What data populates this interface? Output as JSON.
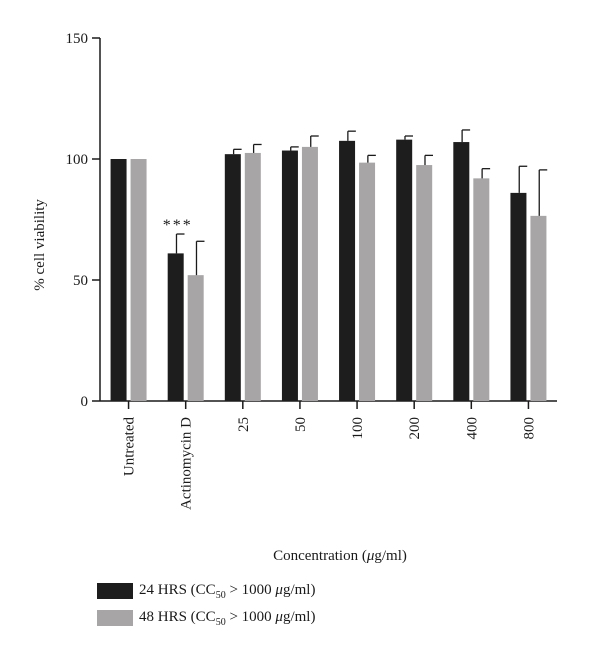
{
  "chart_data": {
    "type": "bar",
    "categories": [
      "Untreated",
      "Actinomycin D",
      "25",
      "50",
      "100",
      "200",
      "400",
      "800"
    ],
    "series": [
      {
        "name": "24 HRS (CC50 > 1000 μg/ml)",
        "color": "#1d1d1d",
        "values": [
          100,
          61,
          102,
          103.5,
          107.5,
          108,
          107,
          86
        ],
        "errors": [
          0,
          8,
          2,
          1.5,
          4,
          1.5,
          5,
          11
        ]
      },
      {
        "name": "48 HRS (CC50 > 1000 μg/ml)",
        "color": "#a8a5a6",
        "values": [
          100,
          52,
          102.5,
          105,
          98.5,
          97.5,
          92,
          76.5
        ],
        "errors": [
          0,
          14,
          3.5,
          4.5,
          3,
          4,
          4,
          19
        ]
      }
    ],
    "ylabel": "% cell viability",
    "xlabel_text": "Concentration (",
    "xlabel_unit": "μ",
    "xlabel_rest": "g/ml)",
    "ylim": [
      0,
      150
    ],
    "yticks": [
      0,
      50,
      100,
      150
    ],
    "annotations": [
      {
        "category": "Actinomycin D",
        "series": 0,
        "text": "***"
      }
    ],
    "legend_position": "bottom-left",
    "grid": false
  },
  "legend": {
    "items": [
      {
        "label": "24 HRS (CC",
        "sub": "50",
        "mid": " > 1000 ",
        "unit": "μ",
        "end": "g/ml)",
        "color": "#1d1d1d"
      },
      {
        "label": "48 HRS (CC",
        "sub": "50",
        "mid": " > 1000 ",
        "unit": "μ",
        "end": "g/ml)",
        "color": "#a8a5a6"
      }
    ]
  }
}
